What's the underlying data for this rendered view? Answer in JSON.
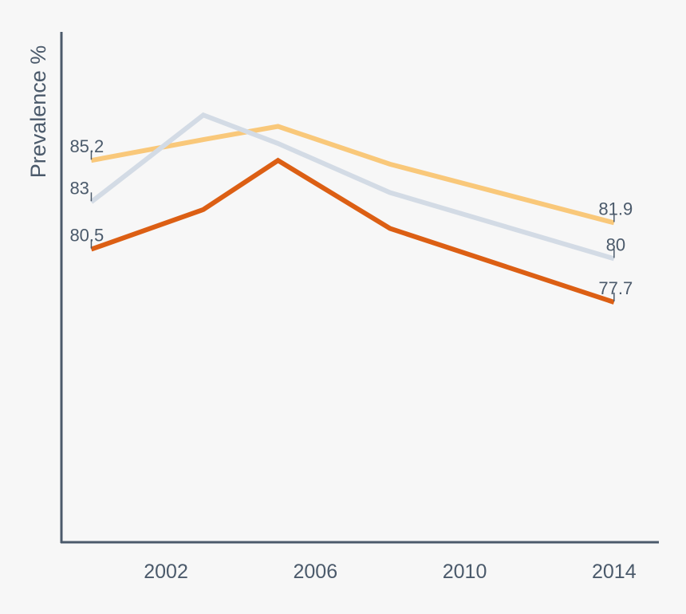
{
  "chart_data": {
    "type": "line",
    "ylabel": "Prevalence %",
    "xlabel": "",
    "x": [
      2000,
      2003,
      2005,
      2008,
      2014
    ],
    "x_ticks": [
      2002,
      2006,
      2010,
      2014
    ],
    "xlim": [
      1999.2,
      2015.2
    ],
    "ylim": [
      65,
      92
    ],
    "grid": false,
    "series": [
      {
        "color": "#f9c87a",
        "values": [
          85.2,
          86.3,
          87.0,
          85.0,
          81.9
        ]
      },
      {
        "color": "#d3dbe5",
        "values": [
          83.0,
          87.6,
          86.1,
          83.5,
          80.0
        ]
      },
      {
        "color": "#dc5f14",
        "values": [
          80.5,
          82.6,
          85.2,
          81.6,
          77.7
        ]
      }
    ],
    "data_labels": [
      {
        "series": 0,
        "point": 0,
        "text": "85.2"
      },
      {
        "series": 1,
        "point": 0,
        "text": "83"
      },
      {
        "series": 2,
        "point": 0,
        "text": "80.5"
      },
      {
        "series": 0,
        "point": 4,
        "text": "81.9"
      },
      {
        "series": 1,
        "point": 4,
        "text": "80"
      },
      {
        "series": 2,
        "point": 4,
        "text": "77.7"
      }
    ],
    "colors": {
      "axis": "#4b5a6b",
      "text": "#4b5a6b",
      "background": "#f7f7f7"
    }
  }
}
